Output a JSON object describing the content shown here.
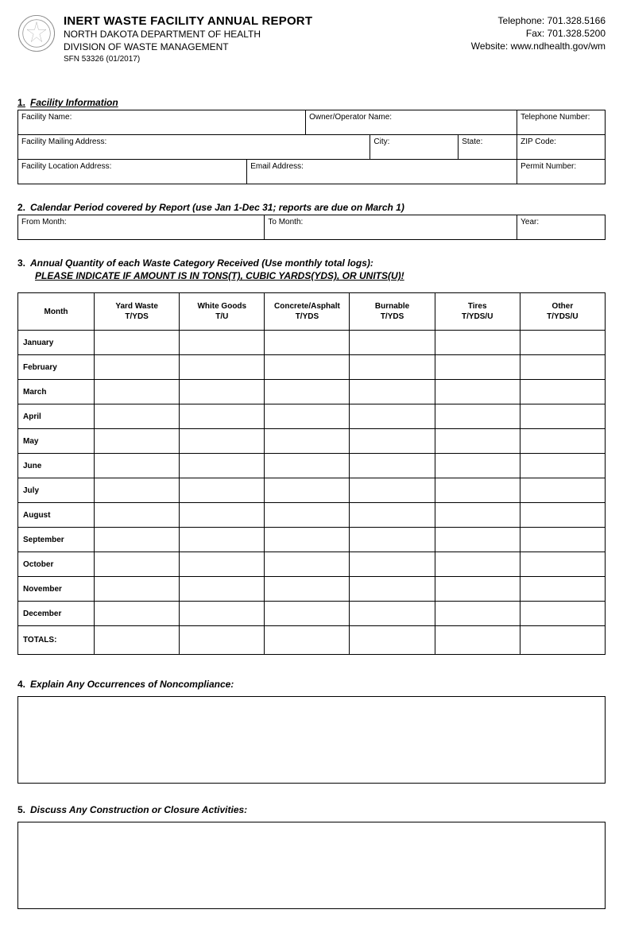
{
  "header": {
    "title": "INERT WASTE FACILITY ANNUAL REPORT",
    "dept": "NORTH DAKOTA DEPARTMENT OF HEALTH",
    "division": "DIVISION OF WASTE MANAGEMENT",
    "form_no": "SFN 53326 (01/2017)",
    "telephone_label": "Telephone: ",
    "telephone": "701.328.5166",
    "fax_label": "Fax: ",
    "fax": "701.328.5200",
    "website_label": "Website: ",
    "website": "www.ndhealth.gov/wm"
  },
  "section1": {
    "num": "1.",
    "title": "Facility Information",
    "fields": {
      "facility_name": "Facility Name:",
      "owner_operator": "Owner/Operator Name:",
      "telephone": "Telephone Number:",
      "mailing_address": "Facility Mailing Address:",
      "city": "City:",
      "state": "State:",
      "zip": "ZIP Code:",
      "location_address": "Facility Location Address:",
      "email": "Email Address:",
      "permit": "Permit Number:"
    }
  },
  "section2": {
    "num": "2.",
    "title": "Calendar Period covered by Report (use Jan 1-Dec 31; reports are due on March 1)",
    "from": "From Month:",
    "to": "To Month:",
    "year": "Year:"
  },
  "section3": {
    "num": "3.",
    "title": "Annual Quantity of each Waste Category Received (Use monthly total logs):",
    "subtitle": "PLEASE INDICATE IF AMOUNT IS IN TONS(T), CUBIC YARDS(YDS), OR UNITS(U)!",
    "columns": [
      "Month",
      "Yard Waste\nT/YDS",
      "White Goods\nT/U",
      "Concrete/Asphalt\nT/YDS",
      "Burnable\nT/YDS",
      "Tires\nT/YDS/U",
      "Other\nT/YDS/U"
    ],
    "months": [
      "January",
      "February",
      "March",
      "April",
      "May",
      "June",
      "July",
      "August",
      "September",
      "October",
      "November",
      "December"
    ],
    "totals": "TOTALS:"
  },
  "section4": {
    "num": "4.",
    "title": "Explain Any Occurrences of Noncompliance:"
  },
  "section5": {
    "num": "5.",
    "title": "Discuss Any Construction or Closure Activities:"
  }
}
